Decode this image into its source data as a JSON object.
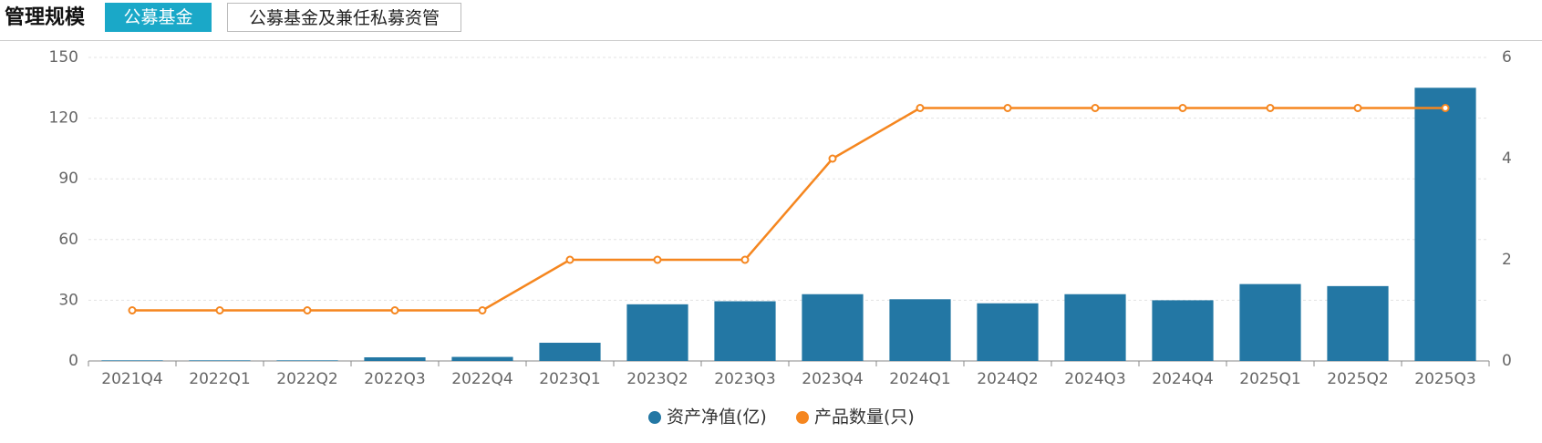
{
  "header": {
    "title": "管理规模",
    "tabs": [
      "公募基金",
      "公募基金及兼任私募资管"
    ]
  },
  "chart_data": {
    "type": "bar",
    "categories": [
      "2021Q4",
      "2022Q1",
      "2022Q2",
      "2022Q3",
      "2022Q4",
      "2023Q1",
      "2023Q2",
      "2023Q3",
      "2023Q4",
      "2024Q1",
      "2024Q2",
      "2024Q3",
      "2024Q4",
      "2025Q1",
      "2025Q2",
      "2025Q3"
    ],
    "series": [
      {
        "name": "资产净值(亿)",
        "type": "bar",
        "color": "#2377a4",
        "values": [
          0.3,
          0.3,
          0.3,
          1.8,
          2,
          9,
          28,
          29.5,
          33,
          30.5,
          28.5,
          33,
          30,
          38,
          37,
          135
        ]
      },
      {
        "name": "产品数量(只)",
        "type": "line",
        "axis": "y2",
        "color": "#f5861f",
        "values": [
          1,
          1,
          1,
          1,
          1,
          2,
          2,
          2,
          4,
          5,
          5,
          5,
          5,
          5,
          5,
          5
        ]
      }
    ],
    "ylim": [
      0,
      150
    ],
    "yticks": [
      0,
      30,
      60,
      90,
      120,
      150
    ],
    "y2lim": [
      0,
      6
    ],
    "y2ticks": [
      0,
      2,
      4,
      6
    ],
    "grid": true,
    "legend": "bottom"
  }
}
